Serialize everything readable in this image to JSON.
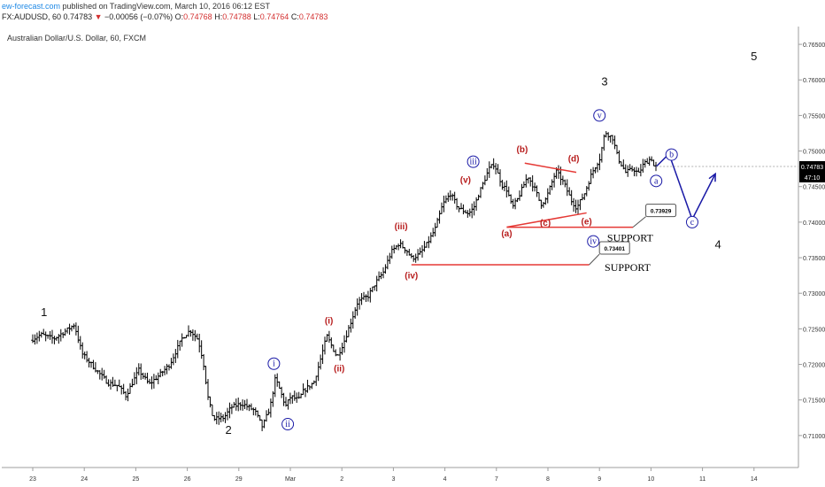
{
  "header": {
    "brand": "ew-forecast.com",
    "published_text": "published on TradingView.com, March 10, 2016 06:12 EST",
    "symbol": "FX:AUDUSD, 60",
    "last": "0.74783",
    "change": "−0.00056 (−0.07%)",
    "o_label": "O:",
    "o_val": "0.74768",
    "h_label": "H:",
    "h_val": "0.74788",
    "l_label": "L:",
    "l_val": "0.74764",
    "c_label": "C:",
    "c_val": "0.74783"
  },
  "chart_title": "Australian Dollar/U.S. Dollar, 60, FXCM",
  "price_badge": "0.74783",
  "time_badge": "47:10",
  "colors": {
    "up": "#000000",
    "wave_red": "#b71c1c",
    "wave_blue": "#1a1aa6",
    "line_red": "#e53935",
    "badge_bg": "#000000"
  },
  "chart_data": {
    "type": "ohlc",
    "symbol": "AUDUSD",
    "timeframe": "60",
    "ylim": [
      0.7055,
      0.7675
    ],
    "yticks": [
      "0.76500",
      "0.76000",
      "0.75500",
      "0.75000",
      "0.74500",
      "0.74000",
      "0.73500",
      "0.73000",
      "0.72500",
      "0.72000",
      "0.71500",
      "0.71000"
    ],
    "ytick_values": [
      0.765,
      0.76,
      0.755,
      0.75,
      0.745,
      0.74,
      0.735,
      0.73,
      0.725,
      0.72,
      0.715,
      0.71
    ],
    "xticks": [
      "23",
      "24",
      "25",
      "26",
      "29",
      "Mar",
      "2",
      "3",
      "4",
      "7",
      "8",
      "9",
      "10",
      "11",
      "14"
    ],
    "xtick_index": [
      0,
      1,
      2,
      3,
      4,
      5,
      6,
      7,
      8,
      9,
      10,
      11,
      12,
      13,
      14
    ],
    "path": [
      [
        0,
        0.7234
      ],
      [
        0.2,
        0.7242
      ],
      [
        0.45,
        0.7236
      ],
      [
        0.7,
        0.7248
      ],
      [
        0.85,
        0.7256
      ],
      [
        1.0,
        0.7215
      ],
      [
        1.3,
        0.719
      ],
      [
        1.5,
        0.7174
      ],
      [
        1.7,
        0.717
      ],
      [
        1.85,
        0.7156
      ],
      [
        2.1,
        0.7192
      ],
      [
        2.3,
        0.7172
      ],
      [
        2.5,
        0.7185
      ],
      [
        2.7,
        0.72
      ],
      [
        2.95,
        0.7238
      ],
      [
        3.1,
        0.7248
      ],
      [
        3.25,
        0.7235
      ],
      [
        3.35,
        0.7205
      ],
      [
        3.45,
        0.715
      ],
      [
        3.55,
        0.7123
      ],
      [
        3.75,
        0.7125
      ],
      [
        3.9,
        0.714
      ],
      [
        4.1,
        0.7145
      ],
      [
        4.35,
        0.7135
      ],
      [
        4.5,
        0.7112
      ],
      [
        4.65,
        0.714
      ],
      [
        4.75,
        0.718
      ],
      [
        4.82,
        0.7168
      ],
      [
        4.95,
        0.7141
      ],
      [
        5.05,
        0.7155
      ],
      [
        5.2,
        0.715
      ],
      [
        5.3,
        0.7163
      ],
      [
        5.5,
        0.7175
      ],
      [
        5.6,
        0.72
      ],
      [
        5.75,
        0.724
      ],
      [
        5.85,
        0.7225
      ],
      [
        5.95,
        0.721
      ],
      [
        6.1,
        0.7235
      ],
      [
        6.35,
        0.7288
      ],
      [
        6.55,
        0.7296
      ],
      [
        6.7,
        0.7315
      ],
      [
        6.85,
        0.733
      ],
      [
        7.0,
        0.7358
      ],
      [
        7.15,
        0.737
      ],
      [
        7.3,
        0.736
      ],
      [
        7.4,
        0.7349
      ],
      [
        7.55,
        0.7355
      ],
      [
        7.7,
        0.737
      ],
      [
        7.85,
        0.739
      ],
      [
        8.0,
        0.7425
      ],
      [
        8.15,
        0.744
      ],
      [
        8.3,
        0.742
      ],
      [
        8.5,
        0.7412
      ],
      [
        8.6,
        0.742
      ],
      [
        8.7,
        0.744
      ],
      [
        8.9,
        0.7475
      ],
      [
        9.0,
        0.7482
      ],
      [
        9.15,
        0.7452
      ],
      [
        9.25,
        0.7445
      ],
      [
        9.35,
        0.742
      ],
      [
        9.45,
        0.7432
      ],
      [
        9.65,
        0.7465
      ],
      [
        9.8,
        0.7445
      ],
      [
        9.9,
        0.7425
      ],
      [
        10.0,
        0.7432
      ],
      [
        10.2,
        0.7472
      ],
      [
        10.35,
        0.7455
      ],
      [
        10.5,
        0.743
      ],
      [
        10.6,
        0.742
      ],
      [
        10.75,
        0.744
      ],
      [
        10.9,
        0.747
      ],
      [
        11.05,
        0.749
      ],
      [
        11.15,
        0.7527
      ],
      [
        11.3,
        0.7518
      ],
      [
        11.4,
        0.749
      ],
      [
        11.55,
        0.747
      ],
      [
        11.7,
        0.7475
      ],
      [
        11.8,
        0.7468
      ],
      [
        11.9,
        0.7482
      ],
      [
        12.05,
        0.749
      ],
      [
        12.1,
        0.7478
      ]
    ],
    "waves": [
      {
        "label": "1",
        "style": "plain",
        "x": 0.22,
        "y": 0.7268
      },
      {
        "label": "2",
        "style": "plain",
        "x": 3.8,
        "y": 0.7102
      },
      {
        "label": "3",
        "style": "plain",
        "x": 11.1,
        "y": 0.7592
      },
      {
        "label": "4",
        "style": "plain",
        "x": 13.3,
        "y": 0.7363
      },
      {
        "label": "5",
        "style": "plain",
        "x": 14.0,
        "y": 0.7628
      },
      {
        "label": "i",
        "style": "blue",
        "x": 4.68,
        "y": 0.7196
      },
      {
        "label": "ii",
        "style": "blue",
        "x": 4.95,
        "y": 0.7111
      },
      {
        "label": "iii",
        "style": "blue",
        "x": 8.55,
        "y": 0.748
      },
      {
        "label": "iv",
        "style": "blue",
        "x": 10.88,
        "y": 0.7368
      },
      {
        "label": "v",
        "style": "blue",
        "x": 11.0,
        "y": 0.7545
      },
      {
        "label": "a",
        "style": "blue",
        "x": 12.1,
        "y": 0.7453
      },
      {
        "label": "b",
        "style": "blue",
        "x": 12.4,
        "y": 0.749
      },
      {
        "label": "c",
        "style": "blue",
        "x": 12.8,
        "y": 0.7395
      },
      {
        "label": "(i)",
        "style": "red",
        "x": 5.75,
        "y": 0.7257
      },
      {
        "label": "(ii)",
        "style": "red",
        "x": 5.95,
        "y": 0.719
      },
      {
        "label": "(iii)",
        "style": "red",
        "x": 7.15,
        "y": 0.739
      },
      {
        "label": "(iv)",
        "style": "red",
        "x": 7.35,
        "y": 0.7321
      },
      {
        "label": "(v)",
        "style": "red",
        "x": 8.4,
        "y": 0.7455
      },
      {
        "label": "(a)",
        "style": "red",
        "x": 9.2,
        "y": 0.738
      },
      {
        "label": "(b)",
        "style": "red",
        "x": 9.5,
        "y": 0.7498
      },
      {
        "label": "(c)",
        "style": "red",
        "x": 9.95,
        "y": 0.7395
      },
      {
        "label": "(d)",
        "style": "red",
        "x": 10.5,
        "y": 0.7485
      },
      {
        "label": "(e)",
        "style": "red",
        "x": 10.75,
        "y": 0.7397
      }
    ],
    "support_levels": [
      {
        "value": 0.73929,
        "label": "SUPPORT",
        "badge": "0.73929"
      },
      {
        "value": 0.73401,
        "label": "SUPPORT",
        "badge": "0.73401"
      }
    ],
    "triangle": {
      "upper": [
        [
          9.55,
          0.7483
        ],
        [
          10.55,
          0.747
        ]
      ],
      "lower": [
        [
          9.2,
          0.7393
        ],
        [
          10.75,
          0.7413
        ]
      ]
    },
    "projection": [
      [
        12.1,
        0.7478
      ],
      [
        12.35,
        0.7496
      ],
      [
        12.8,
        0.7404
      ],
      [
        13.25,
        0.7468
      ]
    ]
  }
}
